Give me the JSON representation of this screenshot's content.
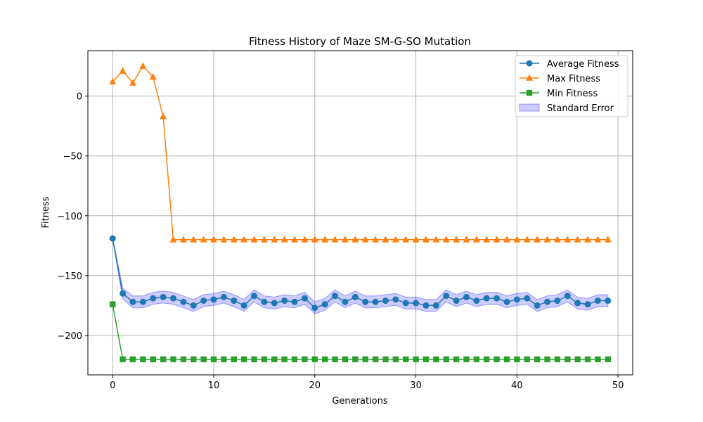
{
  "chart_data": {
    "type": "line",
    "title": "Fitness History of Maze SM-G-SO Mutation",
    "xlabel": "Generations",
    "ylabel": "Fitness",
    "xlim": [
      -2.45,
      51.45
    ],
    "ylim": [
      -233,
      38
    ],
    "grid": true,
    "legend_placement": "top-right",
    "x_ticks": [
      0,
      10,
      20,
      30,
      40,
      50
    ],
    "y_ticks": [
      0,
      -50,
      -100,
      -150,
      -200
    ],
    "x_tick_labels": [
      "0",
      "10",
      "20",
      "30",
      "40",
      "50"
    ],
    "y_tick_labels": [
      "0",
      "−50",
      "−100",
      "−150",
      "−200"
    ],
    "x": [
      0,
      1,
      2,
      3,
      4,
      5,
      6,
      7,
      8,
      9,
      10,
      11,
      12,
      13,
      14,
      15,
      16,
      17,
      18,
      19,
      20,
      21,
      22,
      23,
      24,
      25,
      26,
      27,
      28,
      29,
      30,
      31,
      32,
      33,
      34,
      35,
      36,
      37,
      38,
      39,
      40,
      41,
      42,
      43,
      44,
      45,
      46,
      47,
      48,
      49
    ],
    "series": [
      {
        "name": "Average Fitness",
        "color": "#1f77b4",
        "marker": "circle",
        "values": [
          -119,
          -165,
          -172,
          -172,
          -169,
          -168,
          -169,
          -172,
          -175,
          -171,
          -170,
          -168,
          -171,
          -175,
          -167,
          -172,
          -173,
          -171,
          -172,
          -169,
          -177,
          -174,
          -167,
          -172,
          -168,
          -172,
          -172,
          -171,
          -170,
          -173,
          -173,
          -175,
          -175,
          -167,
          -171,
          -168,
          -171,
          -169,
          -169,
          -172,
          -170,
          -169,
          -175,
          -172,
          -171,
          -167,
          -173,
          -174,
          -171,
          -171
        ]
      },
      {
        "name": "Max Fitness",
        "color": "#ff7f0e",
        "marker": "triangle",
        "values": [
          12,
          21,
          11,
          25,
          16,
          -17,
          -120,
          -120,
          -120,
          -120,
          -120,
          -120,
          -120,
          -120,
          -120,
          -120,
          -120,
          -120,
          -120,
          -120,
          -120,
          -120,
          -120,
          -120,
          -120,
          -120,
          -120,
          -120,
          -120,
          -120,
          -120,
          -120,
          -120,
          -120,
          -120,
          -120,
          -120,
          -120,
          -120,
          -120,
          -120,
          -120,
          -120,
          -120,
          -120,
          -120,
          -120,
          -120,
          -120,
          -120
        ]
      },
      {
        "name": "Min Fitness",
        "color": "#2ca02c",
        "marker": "square",
        "values": [
          -174,
          -220,
          -220,
          -220,
          -220,
          -220,
          -220,
          -220,
          -220,
          -220,
          -220,
          -220,
          -220,
          -220,
          -220,
          -220,
          -220,
          -220,
          -220,
          -220,
          -220,
          -220,
          -220,
          -220,
          -220,
          -220,
          -220,
          -220,
          -220,
          -220,
          -220,
          -220,
          -220,
          -220,
          -220,
          -220,
          -220,
          -220,
          -220,
          -220,
          -220,
          -220,
          -220,
          -220,
          -220,
          -220,
          -220,
          -220,
          -220,
          -220
        ]
      }
    ],
    "error_band": {
      "name": "Standard Error",
      "fill": "#0000ff",
      "fill_opacity": 0.2,
      "half_width": [
        1,
        4.5,
        5,
        5,
        5,
        5,
        5,
        5,
        5,
        5,
        5,
        5,
        5,
        5,
        5,
        5,
        5,
        5,
        5,
        5,
        5,
        5,
        5,
        5,
        5,
        5,
        5,
        5,
        5,
        5,
        5,
        5,
        5,
        5,
        5,
        5,
        5,
        5,
        5,
        5,
        5,
        5,
        5,
        5,
        5,
        5,
        5,
        5,
        5,
        5
      ]
    }
  }
}
